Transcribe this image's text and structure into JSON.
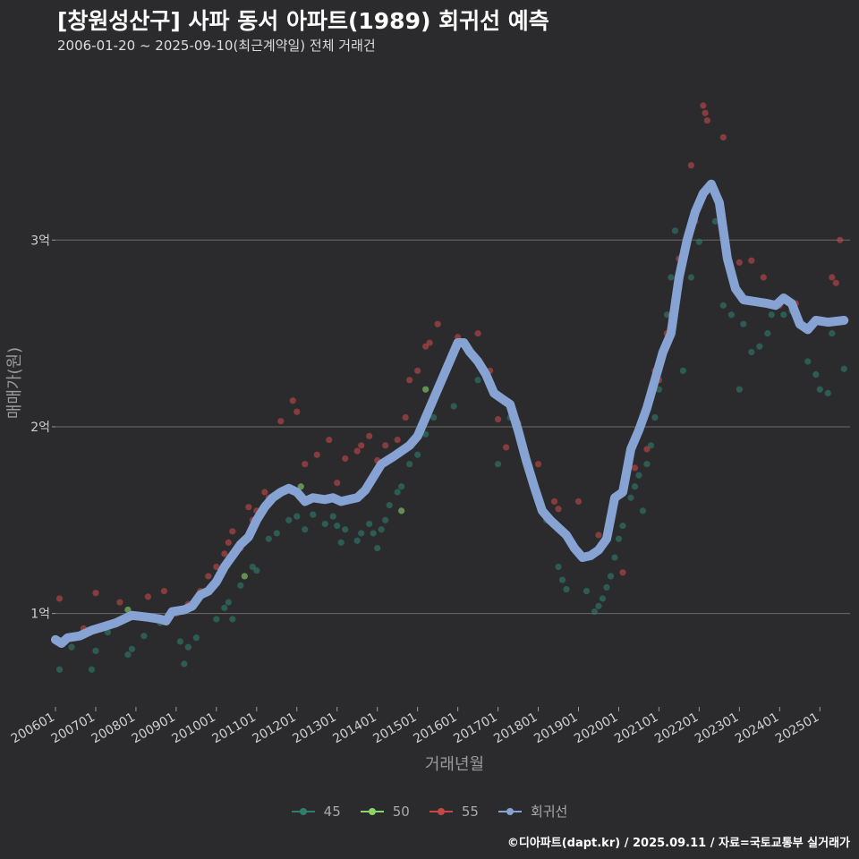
{
  "title": "[창원성산구] 사파 동서 아파트(1989) 회귀선 예측",
  "subtitle": "2006-01-20 ~ 2025-09-10(최근계약일) 전체 거래건",
  "caption": "©디아파트(dapt.kr) / 2025.09.11 / 자료=국토교통부 실거래가",
  "colors": {
    "background": "#2b2b2d",
    "grid": "#6b6b6b",
    "s45": "#2e7d6e",
    "s50": "#8bd46c",
    "s55": "#c44848",
    "regression": "#86a3d4"
  },
  "legend": [
    {
      "key": "45",
      "label": "45",
      "color": "#2e7d6e"
    },
    {
      "key": "50",
      "label": "50",
      "color": "#8bd46c"
    },
    {
      "key": "55",
      "label": "55",
      "color": "#c44848"
    },
    {
      "key": "reg",
      "label": "회귀선",
      "color": "#86a3d4"
    }
  ],
  "chart_data": {
    "type": "scatter",
    "xlabel": "거래년월",
    "ylabel": "매매가(원)",
    "xlim": [
      2006.0,
      2025.75
    ],
    "ylim": [
      0.5,
      3.95
    ],
    "x_ticks": [
      {
        "v": 2006,
        "label": "200601"
      },
      {
        "v": 2007,
        "label": "200701"
      },
      {
        "v": 2008,
        "label": "200801"
      },
      {
        "v": 2009,
        "label": "200901"
      },
      {
        "v": 2010,
        "label": "201001"
      },
      {
        "v": 2011,
        "label": "201101"
      },
      {
        "v": 2012,
        "label": "201201"
      },
      {
        "v": 2013,
        "label": "201301"
      },
      {
        "v": 2014,
        "label": "201401"
      },
      {
        "v": 2015,
        "label": "201501"
      },
      {
        "v": 2016,
        "label": "201601"
      },
      {
        "v": 2017,
        "label": "201701"
      },
      {
        "v": 2018,
        "label": "201801"
      },
      {
        "v": 2019,
        "label": "201901"
      },
      {
        "v": 2020,
        "label": "202001"
      },
      {
        "v": 2021,
        "label": "202101"
      },
      {
        "v": 2022,
        "label": "202201"
      },
      {
        "v": 2023,
        "label": "202301"
      },
      {
        "v": 2024,
        "label": "202401"
      },
      {
        "v": 2025,
        "label": "202501"
      }
    ],
    "y_ticks": [
      {
        "v": 1,
        "label": "1억"
      },
      {
        "v": 2,
        "label": "2억"
      },
      {
        "v": 3,
        "label": "3억"
      }
    ],
    "series": [
      {
        "name": "45",
        "points": [
          [
            2006.1,
            0.7
          ],
          [
            2006.4,
            0.82
          ],
          [
            2006.9,
            0.7
          ],
          [
            2007.0,
            0.8
          ],
          [
            2007.3,
            0.9
          ],
          [
            2007.8,
            0.78
          ],
          [
            2007.9,
            0.81
          ],
          [
            2008.2,
            0.88
          ],
          [
            2008.6,
            0.95
          ],
          [
            2009.1,
            0.85
          ],
          [
            2009.2,
            0.73
          ],
          [
            2009.3,
            0.82
          ],
          [
            2009.5,
            0.87
          ],
          [
            2010.0,
            0.97
          ],
          [
            2010.2,
            1.03
          ],
          [
            2010.3,
            1.06
          ],
          [
            2010.4,
            0.97
          ],
          [
            2010.6,
            1.15
          ],
          [
            2010.9,
            1.25
          ],
          [
            2011.0,
            1.23
          ],
          [
            2011.3,
            1.4
          ],
          [
            2011.5,
            1.43
          ],
          [
            2011.8,
            1.5
          ],
          [
            2012.0,
            1.52
          ],
          [
            2012.2,
            1.45
          ],
          [
            2012.4,
            1.53
          ],
          [
            2012.7,
            1.48
          ],
          [
            2012.9,
            1.52
          ],
          [
            2013.0,
            1.47
          ],
          [
            2013.1,
            1.38
          ],
          [
            2013.2,
            1.45
          ],
          [
            2013.5,
            1.39
          ],
          [
            2013.6,
            1.43
          ],
          [
            2013.8,
            1.48
          ],
          [
            2013.9,
            1.43
          ],
          [
            2014.0,
            1.35
          ],
          [
            2014.1,
            1.45
          ],
          [
            2014.2,
            1.5
          ],
          [
            2014.3,
            1.58
          ],
          [
            2014.5,
            1.65
          ],
          [
            2014.6,
            1.68
          ],
          [
            2014.8,
            1.8
          ],
          [
            2015.0,
            1.85
          ],
          [
            2015.2,
            1.96
          ],
          [
            2015.4,
            2.05
          ],
          [
            2015.9,
            2.11
          ],
          [
            2016.5,
            2.25
          ],
          [
            2017.0,
            1.8
          ],
          [
            2017.3,
            2.05
          ],
          [
            2018.2,
            1.5
          ],
          [
            2018.5,
            1.25
          ],
          [
            2018.6,
            1.18
          ],
          [
            2018.7,
            1.13
          ],
          [
            2019.2,
            1.12
          ],
          [
            2019.4,
            1.01
          ],
          [
            2019.5,
            1.04
          ],
          [
            2019.6,
            1.08
          ],
          [
            2019.7,
            1.14
          ],
          [
            2019.8,
            1.2
          ],
          [
            2019.9,
            1.3
          ],
          [
            2020.0,
            1.4
          ],
          [
            2020.1,
            1.47
          ],
          [
            2020.3,
            1.62
          ],
          [
            2020.4,
            1.68
          ],
          [
            2020.5,
            1.74
          ],
          [
            2020.6,
            1.55
          ],
          [
            2020.7,
            1.8
          ],
          [
            2020.8,
            1.9
          ],
          [
            2020.9,
            2.05
          ],
          [
            2021.0,
            2.2
          ],
          [
            2021.1,
            2.4
          ],
          [
            2021.2,
            2.6
          ],
          [
            2021.3,
            2.8
          ],
          [
            2021.4,
            3.05
          ],
          [
            2021.6,
            2.3
          ],
          [
            2021.8,
            2.8
          ],
          [
            2022.0,
            2.99
          ],
          [
            2022.4,
            3.1
          ],
          [
            2022.6,
            2.65
          ],
          [
            2022.8,
            2.6
          ],
          [
            2023.0,
            2.2
          ],
          [
            2023.1,
            2.55
          ],
          [
            2023.3,
            2.4
          ],
          [
            2023.5,
            2.43
          ],
          [
            2023.7,
            2.5
          ],
          [
            2023.8,
            2.6
          ],
          [
            2024.1,
            2.6
          ],
          [
            2024.3,
            2.62
          ],
          [
            2024.7,
            2.35
          ],
          [
            2024.9,
            2.28
          ],
          [
            2025.0,
            2.2
          ],
          [
            2025.2,
            2.18
          ],
          [
            2025.3,
            2.5
          ],
          [
            2025.6,
            2.31
          ]
        ]
      },
      {
        "name": "50",
        "points": [
          [
            2007.8,
            1.02
          ],
          [
            2010.7,
            1.2
          ],
          [
            2012.1,
            1.68
          ],
          [
            2014.6,
            1.55
          ],
          [
            2015.2,
            2.2
          ]
        ]
      },
      {
        "name": "55",
        "points": [
          [
            2006.1,
            1.08
          ],
          [
            2006.7,
            0.92
          ],
          [
            2007.0,
            1.11
          ],
          [
            2007.6,
            1.06
          ],
          [
            2008.0,
            0.98
          ],
          [
            2008.3,
            1.09
          ],
          [
            2008.7,
            1.12
          ],
          [
            2009.0,
            1.0
          ],
          [
            2009.3,
            1.05
          ],
          [
            2009.6,
            1.12
          ],
          [
            2009.8,
            1.2
          ],
          [
            2010.0,
            1.25
          ],
          [
            2010.2,
            1.32
          ],
          [
            2010.3,
            1.38
          ],
          [
            2010.4,
            1.44
          ],
          [
            2010.6,
            1.35
          ],
          [
            2010.8,
            1.57
          ],
          [
            2010.9,
            1.5
          ],
          [
            2011.0,
            1.55
          ],
          [
            2011.2,
            1.65
          ],
          [
            2011.3,
            1.62
          ],
          [
            2011.6,
            2.03
          ],
          [
            2011.9,
            2.14
          ],
          [
            2012.0,
            2.08
          ],
          [
            2012.2,
            1.8
          ],
          [
            2012.5,
            1.85
          ],
          [
            2012.8,
            1.93
          ],
          [
            2013.0,
            1.7
          ],
          [
            2013.2,
            1.83
          ],
          [
            2013.5,
            1.87
          ],
          [
            2013.6,
            1.9
          ],
          [
            2013.8,
            1.95
          ],
          [
            2014.0,
            1.82
          ],
          [
            2014.2,
            1.9
          ],
          [
            2014.5,
            1.93
          ],
          [
            2014.7,
            2.05
          ],
          [
            2014.8,
            2.25
          ],
          [
            2015.0,
            2.3
          ],
          [
            2015.2,
            2.43
          ],
          [
            2015.3,
            2.45
          ],
          [
            2015.5,
            2.55
          ],
          [
            2016.0,
            2.48
          ],
          [
            2016.3,
            2.4
          ],
          [
            2016.5,
            2.5
          ],
          [
            2016.8,
            2.3
          ],
          [
            2017.0,
            2.04
          ],
          [
            2017.2,
            1.89
          ],
          [
            2017.5,
            2.02
          ],
          [
            2018.0,
            1.8
          ],
          [
            2018.4,
            1.6
          ],
          [
            2018.5,
            1.56
          ],
          [
            2019.0,
            1.6
          ],
          [
            2019.5,
            1.42
          ],
          [
            2020.1,
            1.22
          ],
          [
            2020.4,
            1.78
          ],
          [
            2020.7,
            1.88
          ],
          [
            2020.9,
            2.3
          ],
          [
            2021.0,
            2.25
          ],
          [
            2021.2,
            2.5
          ],
          [
            2021.3,
            2.6
          ],
          [
            2021.5,
            2.9
          ],
          [
            2021.8,
            3.4
          ],
          [
            2021.9,
            3.1
          ],
          [
            2022.1,
            3.72
          ],
          [
            2022.15,
            3.68
          ],
          [
            2022.2,
            3.64
          ],
          [
            2022.6,
            3.55
          ],
          [
            2023.0,
            2.88
          ],
          [
            2023.3,
            2.89
          ],
          [
            2023.6,
            2.8
          ],
          [
            2024.0,
            2.65
          ],
          [
            2024.4,
            2.66
          ],
          [
            2025.3,
            2.8
          ],
          [
            2025.4,
            2.77
          ],
          [
            2025.5,
            3.0
          ]
        ]
      }
    ],
    "regression": [
      [
        2006.0,
        0.86
      ],
      [
        2006.15,
        0.84
      ],
      [
        2006.3,
        0.87
      ],
      [
        2006.6,
        0.88
      ],
      [
        2006.9,
        0.91
      ],
      [
        2007.2,
        0.93
      ],
      [
        2007.5,
        0.95
      ],
      [
        2007.9,
        0.99
      ],
      [
        2008.3,
        0.98
      ],
      [
        2008.6,
        0.97
      ],
      [
        2008.75,
        0.96
      ],
      [
        2008.9,
        1.01
      ],
      [
        2009.2,
        1.02
      ],
      [
        2009.4,
        1.04
      ],
      [
        2009.6,
        1.1
      ],
      [
        2009.8,
        1.12
      ],
      [
        2010.0,
        1.17
      ],
      [
        2010.2,
        1.25
      ],
      [
        2010.4,
        1.31
      ],
      [
        2010.6,
        1.37
      ],
      [
        2010.8,
        1.41
      ],
      [
        2011.0,
        1.5
      ],
      [
        2011.2,
        1.57
      ],
      [
        2011.4,
        1.62
      ],
      [
        2011.6,
        1.65
      ],
      [
        2011.8,
        1.67
      ],
      [
        2012.0,
        1.65
      ],
      [
        2012.2,
        1.6
      ],
      [
        2012.4,
        1.62
      ],
      [
        2012.7,
        1.61
      ],
      [
        2012.9,
        1.62
      ],
      [
        2013.1,
        1.6
      ],
      [
        2013.3,
        1.61
      ],
      [
        2013.5,
        1.62
      ],
      [
        2013.7,
        1.66
      ],
      [
        2013.9,
        1.73
      ],
      [
        2014.1,
        1.8
      ],
      [
        2014.4,
        1.84
      ],
      [
        2014.8,
        1.9
      ],
      [
        2015.0,
        1.95
      ],
      [
        2015.2,
        2.05
      ],
      [
        2015.4,
        2.15
      ],
      [
        2015.6,
        2.25
      ],
      [
        2015.8,
        2.35
      ],
      [
        2016.0,
        2.45
      ],
      [
        2016.15,
        2.45
      ],
      [
        2016.3,
        2.4
      ],
      [
        2016.5,
        2.35
      ],
      [
        2016.7,
        2.28
      ],
      [
        2016.9,
        2.18
      ],
      [
        2017.1,
        2.15
      ],
      [
        2017.3,
        2.12
      ],
      [
        2017.5,
        1.98
      ],
      [
        2017.7,
        1.82
      ],
      [
        2017.9,
        1.68
      ],
      [
        2018.1,
        1.55
      ],
      [
        2018.3,
        1.5
      ],
      [
        2018.5,
        1.46
      ],
      [
        2018.7,
        1.42
      ],
      [
        2018.9,
        1.35
      ],
      [
        2019.1,
        1.3
      ],
      [
        2019.3,
        1.31
      ],
      [
        2019.5,
        1.34
      ],
      [
        2019.7,
        1.4
      ],
      [
        2019.9,
        1.62
      ],
      [
        2020.1,
        1.65
      ],
      [
        2020.3,
        1.88
      ],
      [
        2020.5,
        1.98
      ],
      [
        2020.7,
        2.1
      ],
      [
        2020.9,
        2.25
      ],
      [
        2021.1,
        2.4
      ],
      [
        2021.3,
        2.5
      ],
      [
        2021.5,
        2.8
      ],
      [
        2021.7,
        3.0
      ],
      [
        2021.9,
        3.15
      ],
      [
        2022.1,
        3.25
      ],
      [
        2022.3,
        3.3
      ],
      [
        2022.5,
        3.2
      ],
      [
        2022.7,
        2.9
      ],
      [
        2022.9,
        2.74
      ],
      [
        2023.1,
        2.68
      ],
      [
        2023.4,
        2.67
      ],
      [
        2023.7,
        2.66
      ],
      [
        2023.9,
        2.65
      ],
      [
        2024.1,
        2.69
      ],
      [
        2024.3,
        2.66
      ],
      [
        2024.5,
        2.55
      ],
      [
        2024.7,
        2.52
      ],
      [
        2024.9,
        2.57
      ],
      [
        2025.2,
        2.56
      ],
      [
        2025.6,
        2.57
      ]
    ]
  }
}
